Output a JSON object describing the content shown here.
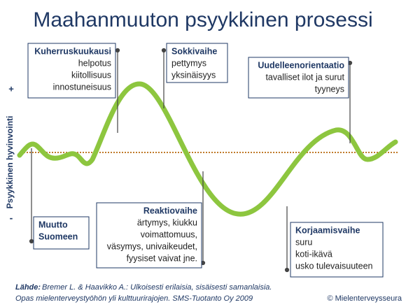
{
  "title": "Maahanmuuton psyykkinen prosessi",
  "y_axis_label": "Psyykkinen hyvinvointi",
  "y_axis_plus": "+",
  "y_axis_minus": "-",
  "phases": [
    {
      "title": "Kuherruskuukausi",
      "lines": [
        "helpotus",
        "kiitollisuus",
        "innostuneisuus"
      ]
    },
    {
      "title": "Sokkivaihe",
      "lines": [
        "pettymys",
        "yksinäisyys"
      ]
    },
    {
      "title": "Uudelleenorientaatio",
      "lines": [
        "tavalliset ilot ja surut",
        "tyyneys"
      ]
    },
    {
      "title": "Muutto",
      "lines": [
        "Suomeen"
      ]
    },
    {
      "title": "Reaktiovaihe",
      "lines": [
        "ärtymys, kiukku",
        "voimattomuus,",
        "väsymys, univaikeudet,",
        "fyysiset vaivat jne."
      ]
    },
    {
      "title": "Korjaamisvaihe",
      "lines": [
        "suru",
        "koti-ikävä",
        "usko tulevaisuuteen"
      ]
    }
  ],
  "source": {
    "label": "Lähde:",
    "lines": [
      "Bremer L. & Haavikko A.: Ulkoisesti erilaisia, sisäisesti samanlaisia.",
      "Opas mielenterveystyöhön yli kulttuurirajojen. SMS-Tuotanto Oy 2009"
    ]
  },
  "copyright": "© Mielenterveysseura"
}
